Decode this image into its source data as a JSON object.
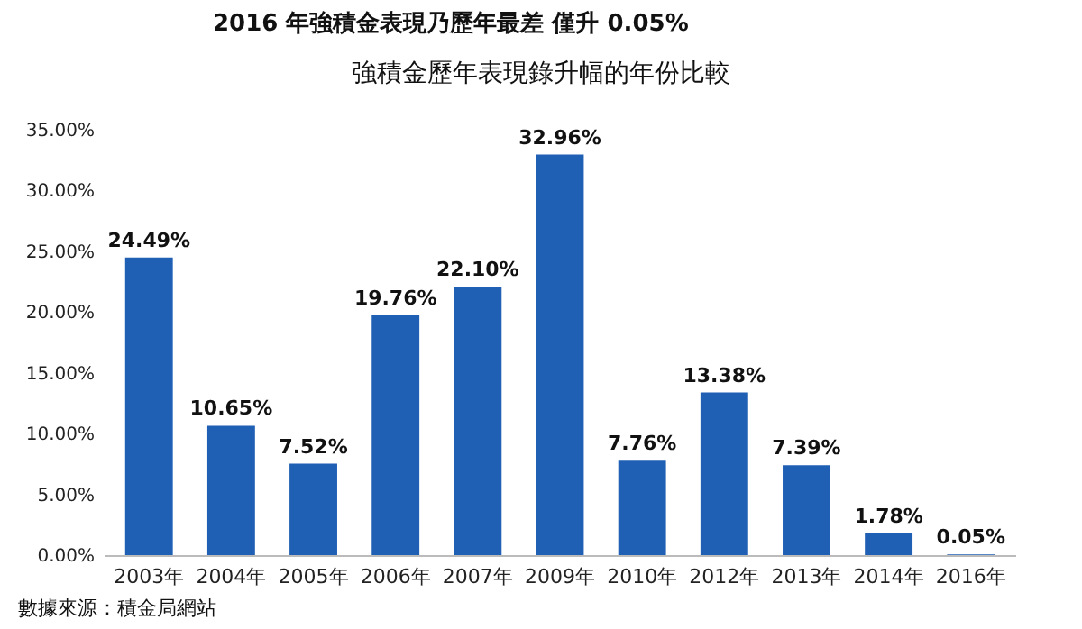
{
  "chart_data": {
    "type": "bar",
    "title": "2016 年強積金表現乃歷年最差  僅升 0.05%",
    "subtitle": "強積金歷年表現錄升幅的年份比較",
    "categories": [
      "2003年",
      "2004年",
      "2005年",
      "2006年",
      "2007年",
      "2009年",
      "2010年",
      "2012年",
      "2013年",
      "2014年",
      "2016年"
    ],
    "values": [
      24.49,
      10.65,
      7.52,
      19.76,
      22.1,
      32.96,
      7.76,
      13.38,
      7.39,
      1.78,
      0.05
    ],
    "value_labels": [
      "24.49%",
      "10.65%",
      "7.52%",
      "19.76%",
      "22.10%",
      "32.96%",
      "7.76%",
      "13.38%",
      "7.39%",
      "1.78%",
      "0.05%"
    ],
    "color": "#1f5fb4",
    "ylim": [
      0,
      35
    ],
    "yticks": [
      {
        "value": 0,
        "label": "0.00%"
      },
      {
        "value": 5,
        "label": "5.00%"
      },
      {
        "value": 10,
        "label": "10.00%"
      },
      {
        "value": 15,
        "label": "15.00%"
      },
      {
        "value": 20,
        "label": "20.00%"
      },
      {
        "value": 25,
        "label": "25.00%"
      },
      {
        "value": 30,
        "label": "30.00%"
      },
      {
        "value": 35,
        "label": "35.00%"
      }
    ],
    "grid": false,
    "annotations": [
      "數據來源：積金局網站"
    ]
  }
}
